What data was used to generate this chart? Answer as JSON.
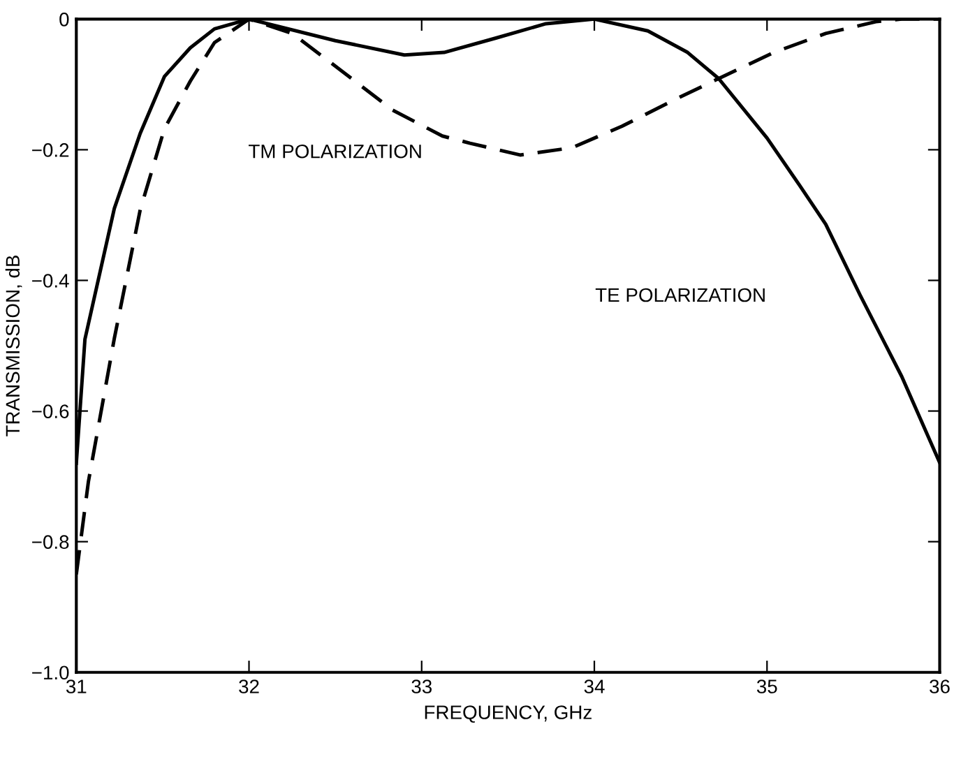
{
  "chart_data": {
    "type": "line",
    "xlabel": "FREQUENCY, GHz",
    "ylabel": "TRANSMISSION, dB",
    "xlim": [
      31,
      36
    ],
    "xticks": [
      31,
      32,
      33,
      34,
      35,
      36
    ],
    "ylim": [
      -1.0,
      0
    ],
    "yticks": [
      {
        "value": -1.0,
        "label": "−1.0"
      },
      {
        "value": -0.8,
        "label": "−0.8"
      },
      {
        "value": -0.6,
        "label": "−0.6"
      },
      {
        "value": -0.4,
        "label": "−0.4"
      },
      {
        "value": -0.2,
        "label": "−0.2"
      },
      0
    ],
    "grid": false,
    "legend": false,
    "series": [
      {
        "color": "#000000",
        "line_style": "solid",
        "x": [
          31.0,
          31.05,
          31.22,
          31.37,
          31.51,
          31.66,
          31.8,
          32.0,
          32.5,
          32.9,
          33.13,
          33.43,
          33.72,
          34.0,
          34.31,
          34.54,
          34.72,
          35.0,
          35.19,
          35.34,
          35.54,
          35.78,
          36.0
        ],
        "values": [
          -0.68,
          -0.49,
          -0.29,
          -0.175,
          -0.088,
          -0.044,
          -0.015,
          0.0,
          -0.033,
          -0.055,
          -0.051,
          -0.029,
          -0.007,
          0.0,
          -0.018,
          -0.051,
          -0.091,
          -0.182,
          -0.255,
          -0.314,
          -0.423,
          -0.547,
          -0.679
        ]
      },
      {
        "color": "#000000",
        "line_style": "dashed",
        "x": [
          31.0,
          31.07,
          31.22,
          31.37,
          31.51,
          31.66,
          31.8,
          32.0,
          32.25,
          32.54,
          32.83,
          33.12,
          33.28,
          33.57,
          33.87,
          34.16,
          34.46,
          34.72,
          35.04,
          35.34,
          35.63,
          35.78,
          36.0
        ],
        "values": [
          -0.85,
          -0.708,
          -0.489,
          -0.292,
          -0.168,
          -0.095,
          -0.036,
          0.0,
          -0.022,
          -0.08,
          -0.139,
          -0.179,
          -0.19,
          -0.208,
          -0.197,
          -0.164,
          -0.124,
          -0.091,
          -0.051,
          -0.022,
          -0.004,
          0.0,
          0.0
        ]
      }
    ],
    "annotations": [
      "TM POLARIZATION",
      "TE POLARIZATION"
    ]
  }
}
